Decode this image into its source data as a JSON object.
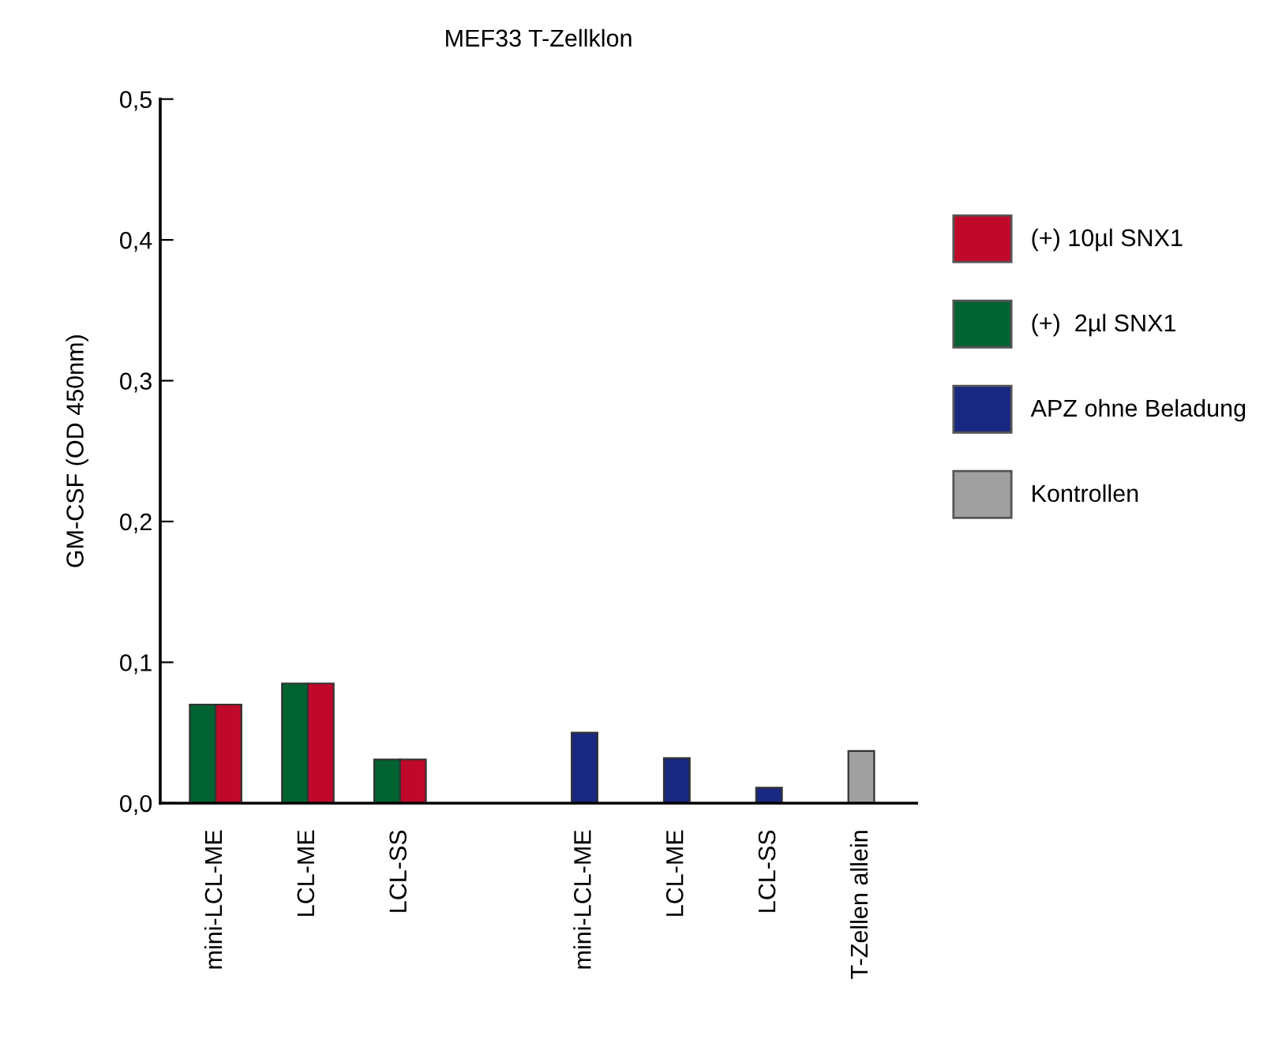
{
  "chart_data": {
    "type": "bar",
    "title": "MEF33 T-Zellklon",
    "ylabel": "GM-CSF (OD 450nm)",
    "categories": [
      "mini-LCL-ME",
      "LCL-ME",
      "LCL-SS",
      null,
      "mini-LCL-ME",
      "LCL-ME",
      "LCL-SS",
      "T-Zellen allein"
    ],
    "series": [
      {
        "name": "(+) 10µl SNX1",
        "color": "#c0092a",
        "values": [
          0.07,
          0.085,
          0.031,
          null,
          null,
          null,
          null,
          null
        ]
      },
      {
        "name": "(+)  2µl SNX1",
        "color": "#006331",
        "values": [
          0.07,
          0.085,
          0.031,
          null,
          null,
          null,
          null,
          null
        ]
      },
      {
        "name": "APZ ohne Beladung",
        "color": "#18277f",
        "values": [
          null,
          null,
          null,
          null,
          0.05,
          0.032,
          0.011,
          null
        ]
      },
      {
        "name": "Kontrollen",
        "color": "#a0a0a0",
        "values": [
          null,
          null,
          null,
          null,
          null,
          null,
          null,
          0.037
        ]
      }
    ],
    "ylim": [
      0,
      0.5
    ],
    "yticks": [
      {
        "value": 0,
        "label": "0,0"
      },
      {
        "value": 0.1,
        "label": "0,1"
      },
      {
        "value": 0.2,
        "label": "0,2"
      },
      {
        "value": 0.3,
        "label": "0,3"
      },
      {
        "value": 0.4,
        "label": "0,4"
      },
      {
        "value": 0.5,
        "label": "0,5"
      }
    ],
    "grid": false,
    "legend": "right"
  }
}
